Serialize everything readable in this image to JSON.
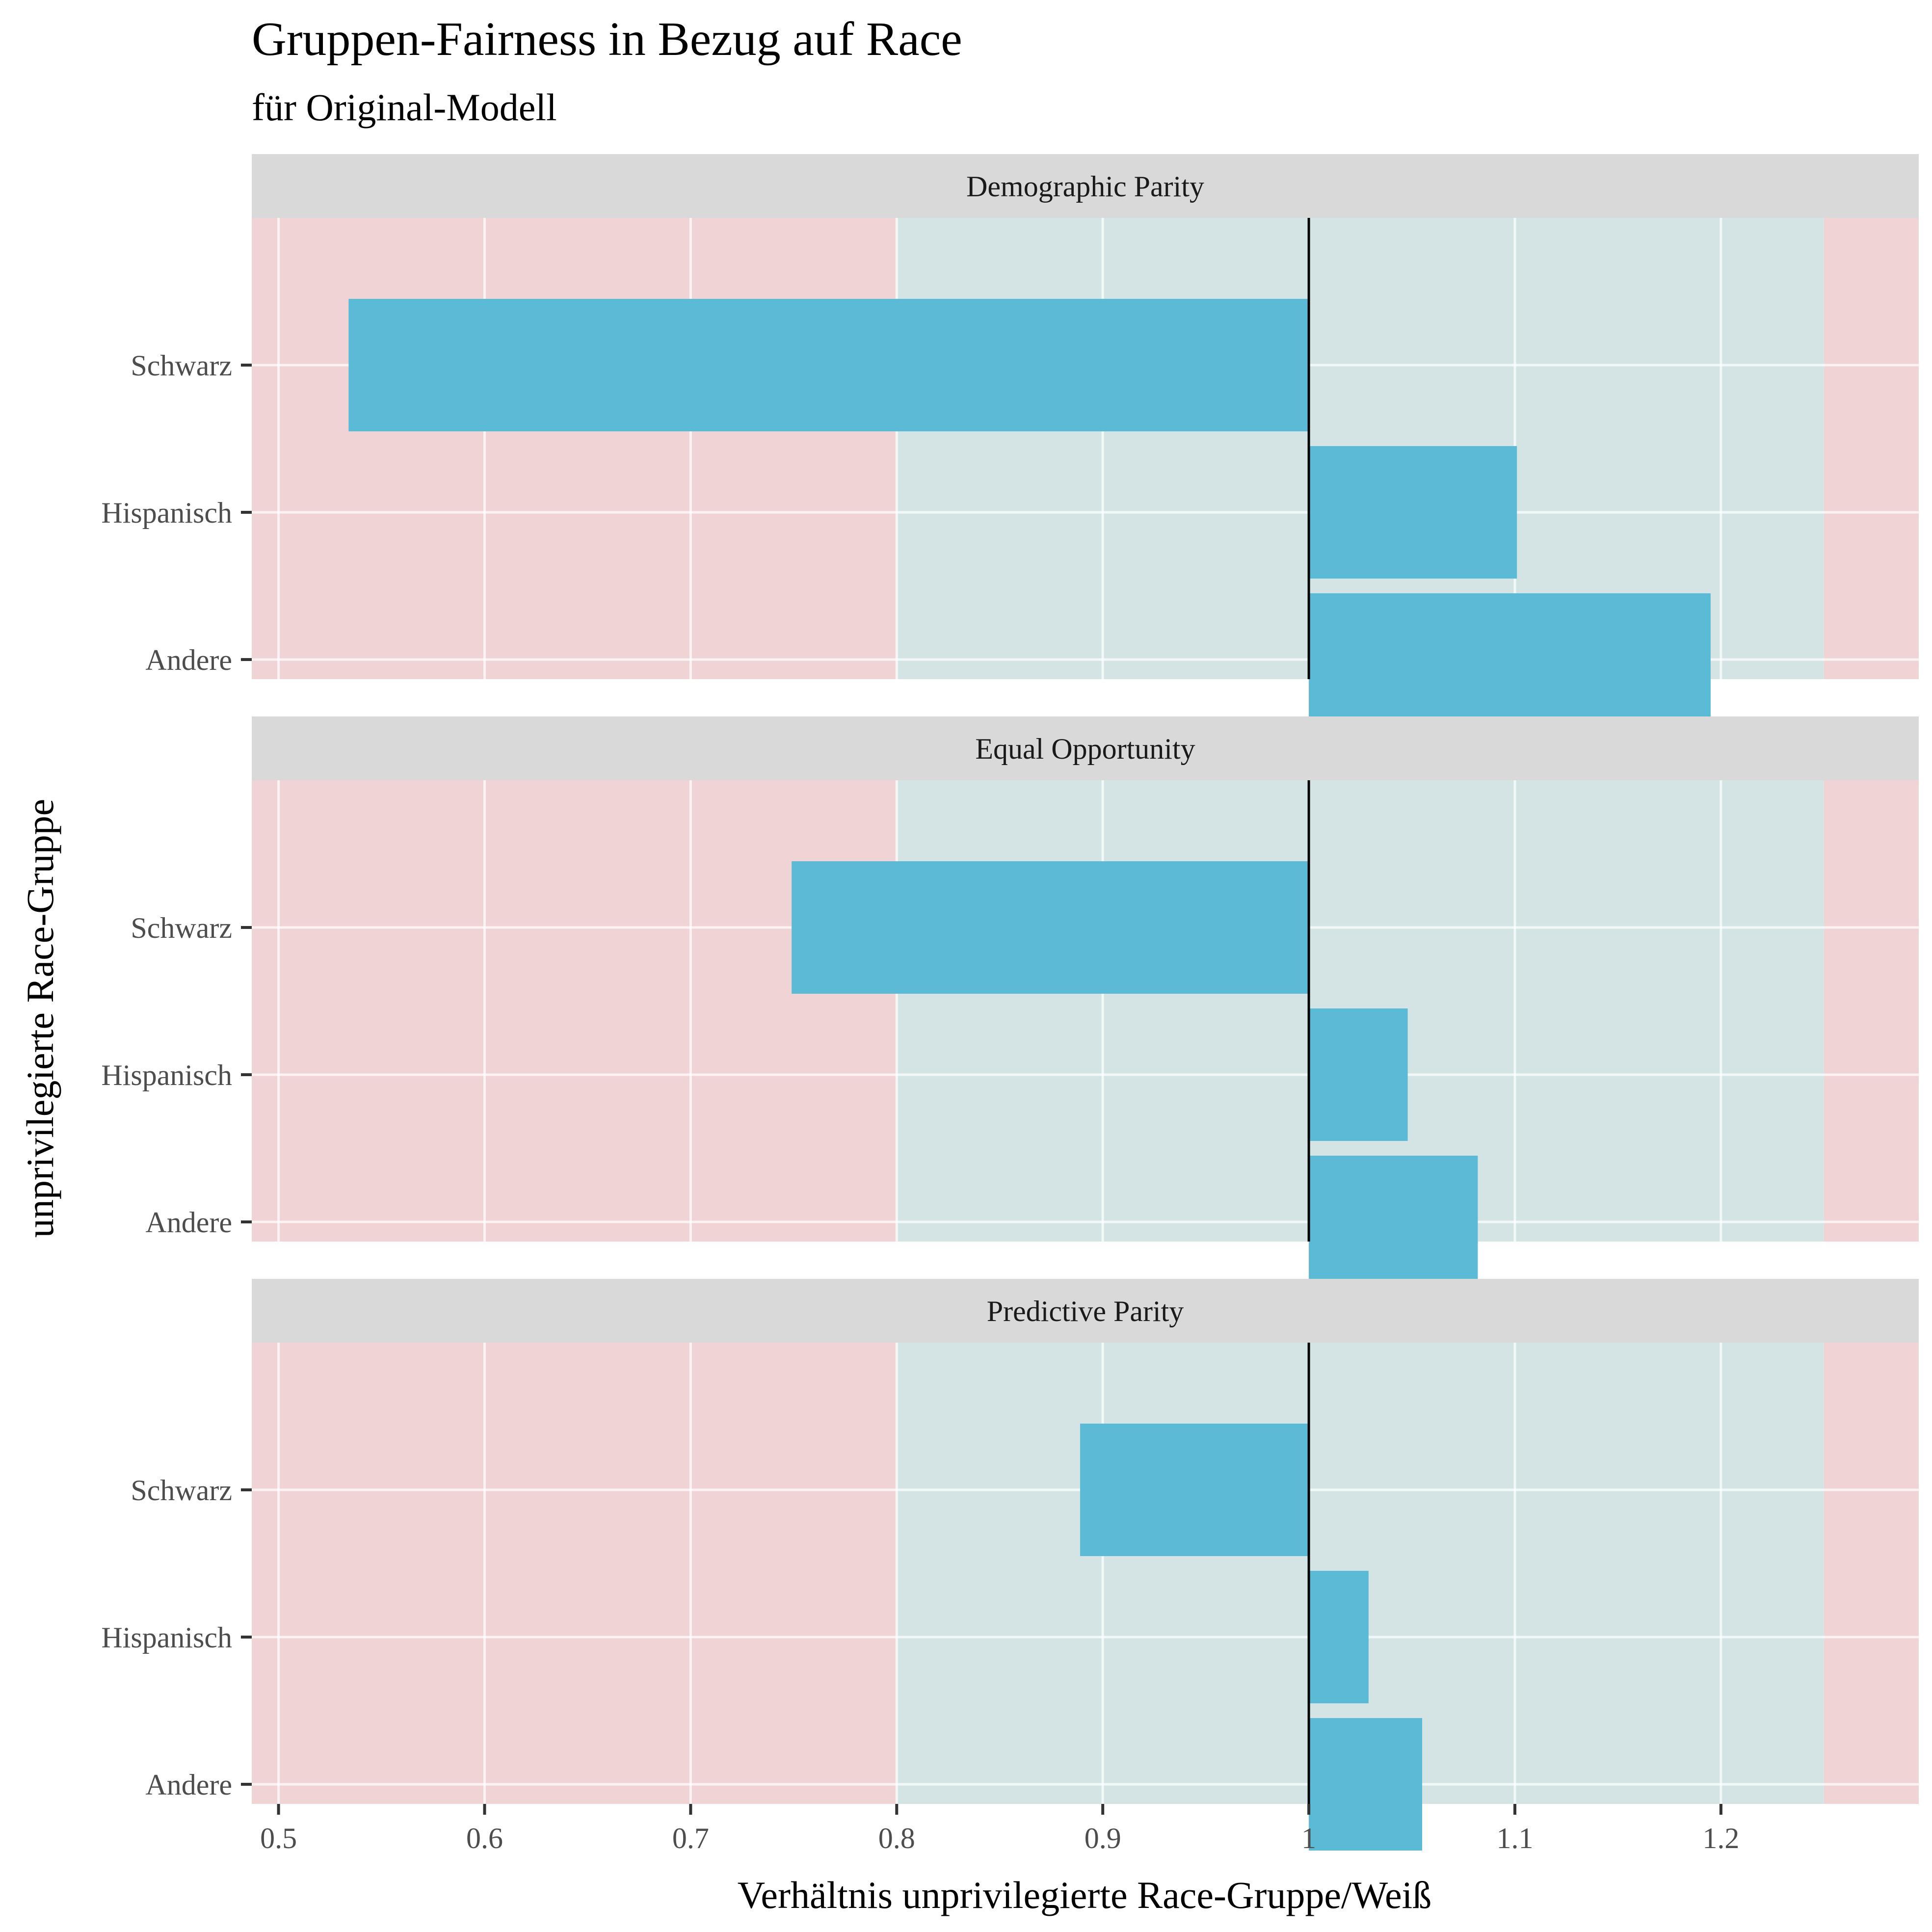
{
  "chart_data": {
    "type": "bar",
    "orientation": "horizontal",
    "title": "Gruppen-Fairness in Bezug auf Race",
    "subtitle": "für Original-Modell",
    "xlabel": "Verhältnis unprivilegierte Race-Gruppe/Weiß",
    "ylabel": "unprivilegierte Race-Gruppe",
    "xlim": [
      0.487,
      1.296
    ],
    "x_ticks": [
      0.5,
      0.6,
      0.7,
      0.8,
      0.9,
      1.0,
      1.1,
      1.2
    ],
    "x_tick_labels": [
      "0.5",
      "0.6",
      "0.7",
      "0.8",
      "0.9",
      "1",
      "1.1",
      "1.2"
    ],
    "baseline": 1.0,
    "fair_range": [
      0.8,
      1.25
    ],
    "categories": [
      "Schwarz",
      "Hispanisch",
      "Andere"
    ],
    "bar_color": "#5BBBD6",
    "fair_region_color": "#D4E4E4",
    "unfair_region_color": "#EFD3D5",
    "strip_color": "#D9D9D9",
    "grid": true,
    "legend": "none",
    "panels": [
      {
        "name": "Demographic Parity",
        "values": [
          0.534,
          1.101,
          1.195
        ]
      },
      {
        "name": "Equal Opportunity",
        "values": [
          0.749,
          1.048,
          1.082
        ]
      },
      {
        "name": "Predictive Parity",
        "values": [
          0.889,
          1.029,
          1.055
        ]
      }
    ]
  }
}
